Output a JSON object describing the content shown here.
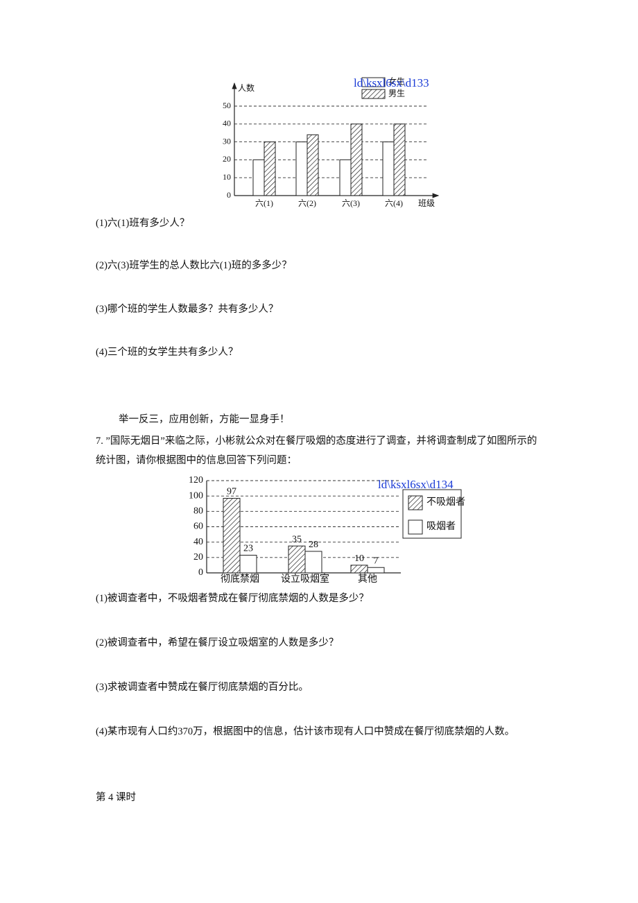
{
  "chart_data": [
    {
      "type": "bar",
      "y_label": "人数",
      "x_label": "班级",
      "watermark": "ld\\ksxl6sx\\d133",
      "categories": [
        "六(1)",
        "六(2)",
        "六(3)",
        "六(4)"
      ],
      "series": [
        {
          "name": "女生",
          "color": "#ffffff",
          "hatched": false,
          "values": [
            20,
            30,
            20,
            30
          ]
        },
        {
          "name": "男生",
          "color": "#ffffff",
          "hatched": true,
          "values": [
            30,
            34,
            40,
            40
          ]
        }
      ],
      "ylim": [
        0,
        50
      ],
      "yticks": [
        0,
        10,
        20,
        30,
        40,
        50
      ],
      "grid": true,
      "legend": "top-right"
    },
    {
      "type": "bar",
      "watermark": "ld\\ksxl6sx\\d134",
      "categories": [
        "彻底禁烟",
        "设立吸烟室",
        "其他"
      ],
      "series": [
        {
          "name": "不吸烟者",
          "color": "#ffffff",
          "hatched": true,
          "values": [
            97,
            35,
            10
          ]
        },
        {
          "name": "吸烟者",
          "color": "#ffffff",
          "hatched": false,
          "values": [
            23,
            28,
            7
          ]
        }
      ],
      "ylim": [
        0,
        120
      ],
      "yticks": [
        0,
        20,
        40,
        60,
        80,
        100,
        120
      ],
      "grid": true,
      "legend": "right",
      "data_labels": true
    }
  ],
  "questions1": [
    "(1)六(1)班有多少人？",
    "(2)六(3)班学生的总人数比六(1)班的多多少？",
    "(3)哪个班的学生人数最多？共有多少人？",
    "(4)三个班的女学生共有多少人？"
  ],
  "motto": "举一反三，应用创新，方能一显身手！",
  "problem7": "7. ”国际无烟日”来临之际，小彬就公众对在餐厅吸烟的态度进行了调查，并将调查制成了如图所示的统计图，请你根据图中的信息回答下列问题：",
  "questions2": [
    "(1)被调查者中，不吸烟者赞成在餐厅彻底禁烟的人数是多少？",
    "(2)被调查者中，希望在餐厅设立吸烟室的人数是多少？",
    "(3)求被调查者中赞成在餐厅彻底禁烟的百分比。",
    "(4)某市现有人口约370万，根据图中的信息，估计该市现有人口中赞成在餐厅彻底禁烟的人数。"
  ],
  "footer": "第 4 课时"
}
